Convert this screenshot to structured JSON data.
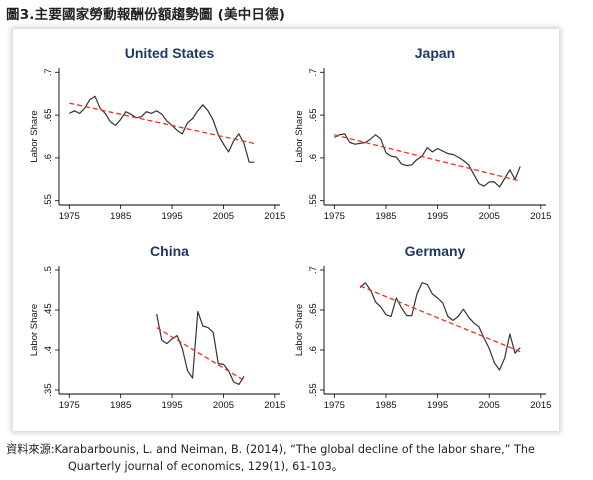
{
  "figure": {
    "title": "圖3.主要國家勞動報酬份額趨勢圖 (美中日德)",
    "source_prefix": "資料來源:",
    "source_line1": "Karabarbounis, L. and Neiman, B. (2014), “The global decline of the labor share,” The",
    "source_line2": "Quarterly journal of economics, 129(1), 61-103。"
  },
  "colors": {
    "series": "#333333",
    "trend": "#e8312a",
    "title": "#1f3864"
  },
  "chart_data": [
    {
      "type": "line",
      "title": "United States",
      "ylabel": "Labor Share",
      "xlim": [
        1973,
        2016
      ],
      "ylim": [
        0.545,
        0.705
      ],
      "xticks": [
        1975,
        1985,
        1995,
        2005,
        2015
      ],
      "xtick_labels": [
        "1975",
        "1985",
        "1995",
        "2005",
        "2015"
      ],
      "yticks": [
        0.55,
        0.6,
        0.65,
        0.7
      ],
      "ytick_labels": [
        ".55",
        ".6",
        ".65",
        ".7"
      ],
      "series": [
        {
          "x": [
            1975,
            1976,
            1977,
            1978,
            1979,
            1980,
            1981,
            1982,
            1983,
            1984,
            1985,
            1986,
            1987,
            1988,
            1989,
            1990,
            1991,
            1992,
            1993,
            1994,
            1995,
            1996,
            1997,
            1998,
            1999,
            2000,
            2001,
            2002,
            2003,
            2004,
            2005,
            2006,
            2007,
            2008,
            2009,
            2010,
            2011
          ],
          "y": [
            0.652,
            0.655,
            0.652,
            0.658,
            0.668,
            0.672,
            0.658,
            0.652,
            0.642,
            0.638,
            0.645,
            0.654,
            0.651,
            0.647,
            0.648,
            0.654,
            0.652,
            0.655,
            0.651,
            0.643,
            0.638,
            0.632,
            0.628,
            0.641,
            0.646,
            0.655,
            0.662,
            0.655,
            0.644,
            0.627,
            0.616,
            0.607,
            0.62,
            0.628,
            0.617,
            0.595,
            0.595
          ]
        },
        {
          "style": "trend",
          "x": [
            1975,
            2011
          ],
          "y": [
            0.664,
            0.617
          ]
        }
      ]
    },
    {
      "type": "line",
      "title": "Japan",
      "ylabel": "Labor Share",
      "xlim": [
        1973,
        2016
      ],
      "ylim": [
        0.545,
        0.705
      ],
      "xticks": [
        1975,
        1985,
        1995,
        2005,
        2015
      ],
      "xtick_labels": [
        "1975",
        "1985",
        "1995",
        "2005",
        "2015"
      ],
      "yticks": [
        0.55,
        0.6,
        0.65,
        0.7
      ],
      "ytick_labels": [
        ".55",
        ".6",
        ".65",
        ".7"
      ],
      "series": [
        {
          "x": [
            1975,
            1976,
            1977,
            1978,
            1979,
            1980,
            1981,
            1982,
            1983,
            1984,
            1985,
            1986,
            1987,
            1988,
            1989,
            1990,
            1991,
            1992,
            1993,
            1994,
            1995,
            1996,
            1997,
            1998,
            1999,
            2000,
            2001,
            2002,
            2003,
            2004,
            2005,
            2006,
            2007,
            2008,
            2009,
            2010,
            2011
          ],
          "y": [
            0.624,
            0.627,
            0.628,
            0.618,
            0.616,
            0.617,
            0.618,
            0.622,
            0.627,
            0.622,
            0.606,
            0.602,
            0.601,
            0.593,
            0.591,
            0.592,
            0.598,
            0.602,
            0.612,
            0.607,
            0.611,
            0.608,
            0.605,
            0.604,
            0.601,
            0.597,
            0.592,
            0.581,
            0.57,
            0.567,
            0.572,
            0.572,
            0.566,
            0.576,
            0.586,
            0.575,
            0.59
          ]
        },
        {
          "style": "trend",
          "x": [
            1975,
            2011
          ],
          "y": [
            0.627,
            0.573
          ]
        }
      ]
    },
    {
      "type": "line",
      "title": "China",
      "ylabel": "Labor Share",
      "xlim": [
        1973,
        2016
      ],
      "ylim": [
        0.345,
        0.505
      ],
      "xticks": [
        1975,
        1985,
        1995,
        2005,
        2015
      ],
      "xtick_labels": [
        "1975",
        "1985",
        "1995",
        "2005",
        "2015"
      ],
      "yticks": [
        0.35,
        0.4,
        0.45,
        0.5
      ],
      "ytick_labels": [
        ".35",
        ".4",
        ".45",
        ".5"
      ],
      "series": [
        {
          "x": [
            1992,
            1993,
            1994,
            1995,
            1996,
            1997,
            1998,
            1999,
            2000,
            2001,
            2002,
            2003,
            2004,
            2005,
            2006,
            2007,
            2008,
            2009
          ],
          "y": [
            0.445,
            0.412,
            0.408,
            0.414,
            0.418,
            0.402,
            0.374,
            0.365,
            0.448,
            0.43,
            0.428,
            0.422,
            0.383,
            0.382,
            0.374,
            0.36,
            0.357,
            0.367
          ]
        },
        {
          "style": "trend",
          "x": [
            1992,
            2009
          ],
          "y": [
            0.428,
            0.362
          ]
        }
      ]
    },
    {
      "type": "line",
      "title": "Germany",
      "ylabel": "Labor Share",
      "xlim": [
        1973,
        2016
      ],
      "ylim": [
        0.545,
        0.705
      ],
      "xticks": [
        1975,
        1985,
        1995,
        2005,
        2015
      ],
      "xtick_labels": [
        "1975",
        "1985",
        "1995",
        "2005",
        "2015"
      ],
      "yticks": [
        0.55,
        0.6,
        0.65,
        0.7
      ],
      "ytick_labels": [
        ".55",
        ".6",
        ".65",
        ".7"
      ],
      "series": [
        {
          "x": [
            1980,
            1981,
            1982,
            1983,
            1984,
            1985,
            1986,
            1987,
            1988,
            1989,
            1990,
            1991,
            1992,
            1993,
            1994,
            1995,
            1996,
            1997,
            1998,
            1999,
            2000,
            2001,
            2002,
            2003,
            2004,
            2005,
            2006,
            2007,
            2008,
            2009,
            2010,
            2011
          ],
          "y": [
            0.678,
            0.684,
            0.675,
            0.66,
            0.654,
            0.644,
            0.642,
            0.665,
            0.653,
            0.643,
            0.643,
            0.67,
            0.684,
            0.682,
            0.67,
            0.665,
            0.659,
            0.642,
            0.637,
            0.642,
            0.651,
            0.641,
            0.634,
            0.629,
            0.615,
            0.602,
            0.584,
            0.575,
            0.59,
            0.62,
            0.596,
            0.603
          ]
        },
        {
          "style": "trend",
          "x": [
            1980,
            2011
          ],
          "y": [
            0.68,
            0.598
          ]
        }
      ]
    }
  ]
}
